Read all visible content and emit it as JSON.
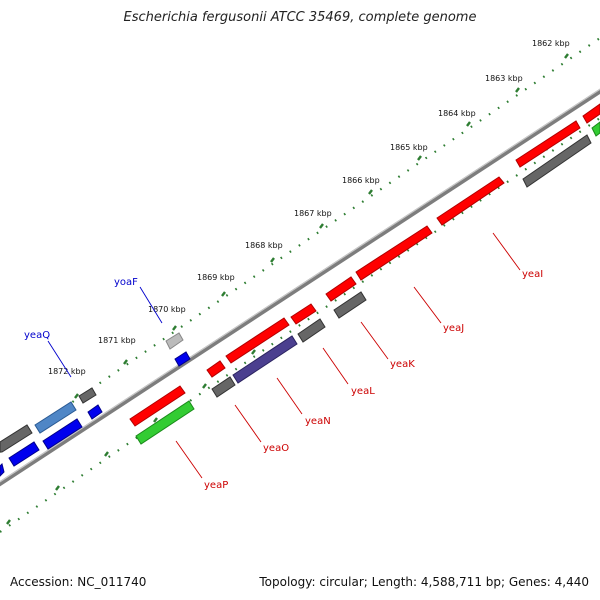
{
  "title": "Escherichia fergusonii ATCC 35469, complete genome",
  "footer": {
    "accession": "Accession: NC_011740",
    "summary": "Topology: circular; Length: 4,588,711 bp; Genes: 4,440"
  },
  "ticks": [
    "1862 kbp",
    "1863 kbp",
    "1864 kbp",
    "1865 kbp",
    "1866 kbp",
    "1867 kbp",
    "1868 kbp",
    "1869 kbp",
    "1870 kbp",
    "1871 kbp",
    "1872 kbp"
  ],
  "gene_labels": {
    "outer": [
      "yoaF",
      "yeaQ"
    ],
    "inner": [
      "yeaI",
      "yeaJ",
      "yeaK",
      "yeaL",
      "yeaN",
      "yeaO",
      "yeaP"
    ]
  },
  "colors": {
    "forward_cds": "#ff0000",
    "reverse_gray": "#666666",
    "blue": "#0000ee",
    "green": "#33cc33",
    "purple": "#4b3f8f",
    "light_blue": "#4f86c6",
    "tick_green": "#2e7d32",
    "backbone": "#888888",
    "outer_label": "#0000cc",
    "inner_label": "#cc0000"
  }
}
